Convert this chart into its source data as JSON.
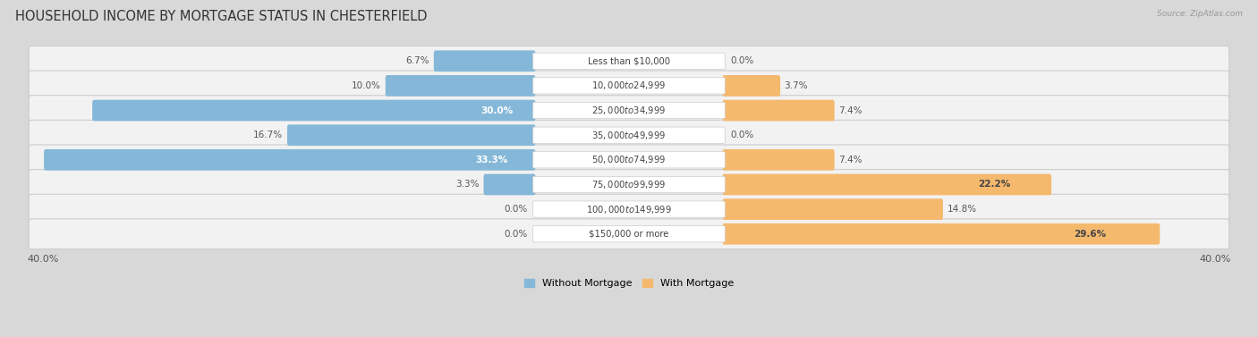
{
  "title": "HOUSEHOLD INCOME BY MORTGAGE STATUS IN CHESTERFIELD",
  "source": "Source: ZipAtlas.com",
  "categories": [
    "Less than $10,000",
    "$10,000 to $24,999",
    "$25,000 to $34,999",
    "$35,000 to $49,999",
    "$50,000 to $74,999",
    "$75,000 to $99,999",
    "$100,000 to $149,999",
    "$150,000 or more"
  ],
  "without_mortgage": [
    6.7,
    10.0,
    30.0,
    16.7,
    33.3,
    3.3,
    0.0,
    0.0
  ],
  "with_mortgage": [
    0.0,
    3.7,
    7.4,
    0.0,
    7.4,
    22.2,
    14.8,
    29.6
  ],
  "color_without": "#85b8d8",
  "color_with": "#f5b96e",
  "color_without_light": "#b8d4e8",
  "color_with_light": "#f8d4a8",
  "axis_max": 40.0,
  "bg_outer": "#d8d8d8",
  "row_bg": "#f2f2f2",
  "row_border": "#cccccc",
  "title_fontsize": 10.5,
  "label_fontsize": 7.5,
  "tick_fontsize": 8,
  "legend_fontsize": 8,
  "value_fontsize": 7.5,
  "cat_label_fontsize": 7.2
}
